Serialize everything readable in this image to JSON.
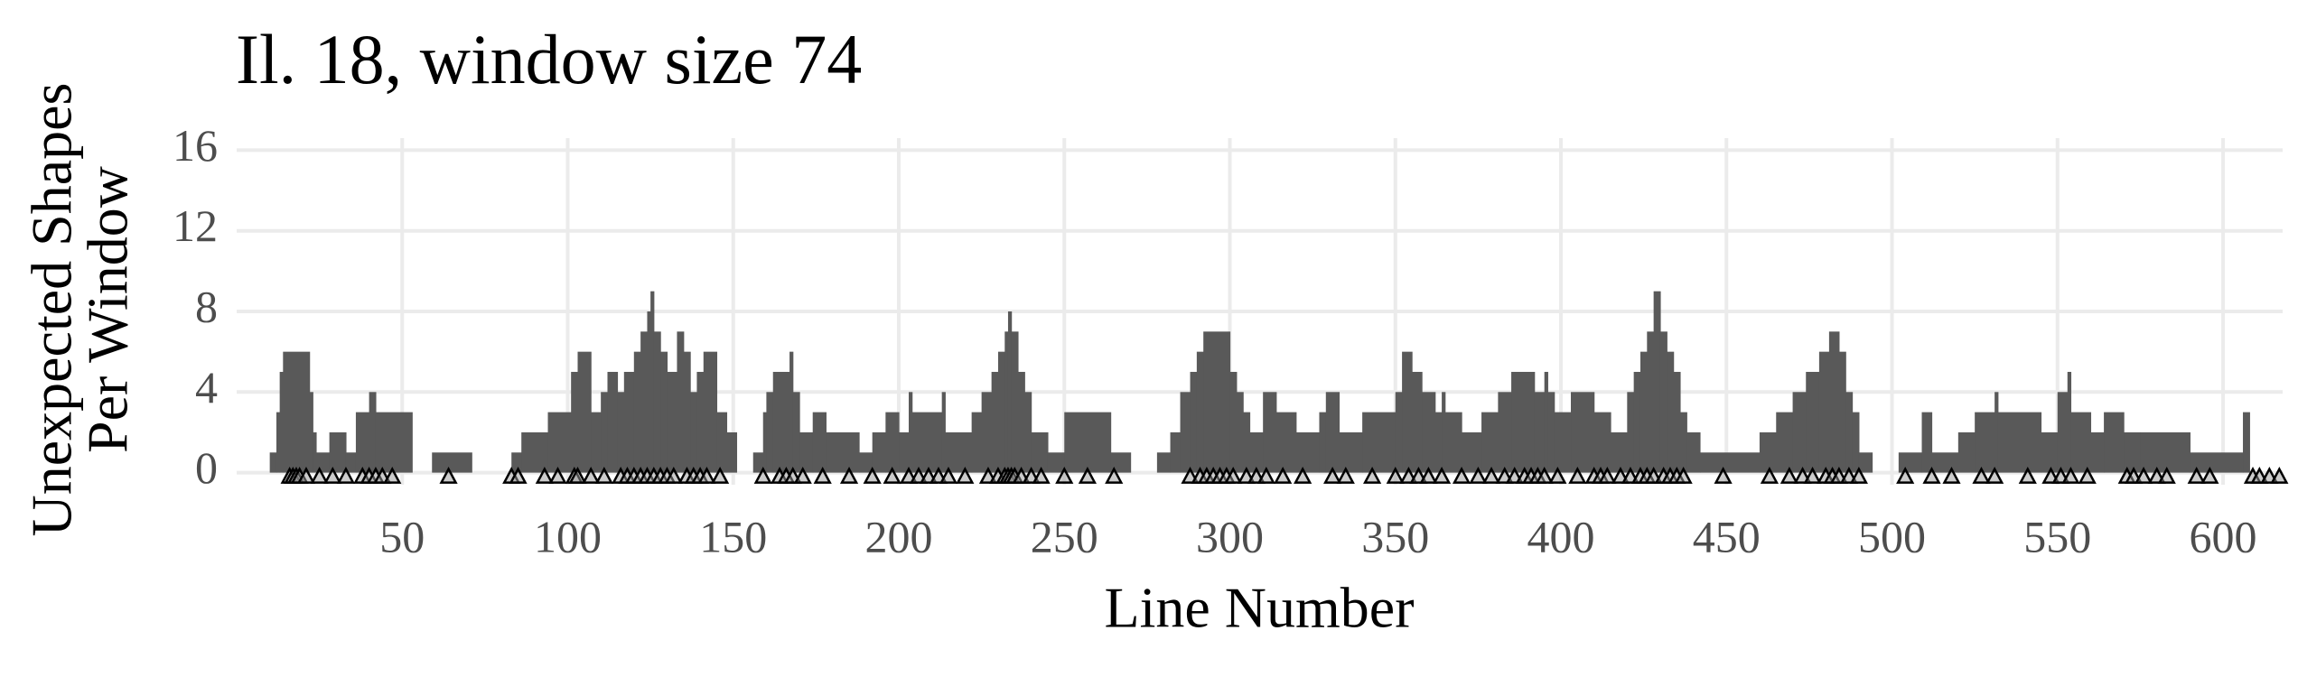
{
  "chart_data": {
    "type": "histogram",
    "title": "Il. 18, window size 74",
    "xlabel": "Line Number",
    "ylabel": [
      "Unexpected Shapes",
      "Per Window"
    ],
    "bins": [
      10,
      12,
      13,
      14,
      22,
      23,
      24,
      28,
      33,
      36,
      40,
      42,
      53,
      59,
      71,
      83,
      86,
      94,
      101,
      103,
      107,
      110,
      112,
      115,
      117,
      120,
      122,
      124,
      125,
      126,
      128,
      130,
      133,
      135,
      137,
      139,
      141,
      145,
      148,
      151,
      156,
      159,
      160,
      162,
      167,
      168,
      170,
      174,
      178,
      188,
      192,
      196,
      200,
      203,
      204,
      213,
      214,
      222,
      225,
      228,
      230,
      232,
      233,
      234,
      236,
      238,
      240,
      245,
      250,
      264,
      270,
      278,
      282,
      285,
      288,
      290,
      292,
      300,
      302,
      304,
      306,
      310,
      314,
      320,
      327,
      329,
      333,
      340,
      350,
      352,
      355,
      358,
      362,
      364,
      365,
      370,
      376,
      381,
      385,
      392,
      395,
      396,
      398,
      403,
      410,
      415,
      420,
      422,
      424,
      426,
      428,
      430,
      432,
      434,
      436,
      438,
      442,
      460,
      465,
      470,
      474,
      478,
      481,
      484,
      486,
      488,
      490,
      494,
      502,
      509,
      512,
      520,
      525,
      531,
      532,
      545,
      550,
      553,
      554,
      560,
      564,
      570,
      575,
      590,
      606,
      608
    ],
    "values": [
      1,
      3,
      5,
      6,
      4,
      2,
      1,
      2,
      1,
      3,
      4,
      3,
      0,
      1,
      0,
      1,
      2,
      3,
      5,
      6,
      3,
      4,
      5,
      4,
      5,
      6,
      7,
      8,
      9,
      7,
      6,
      5,
      7,
      6,
      4,
      5,
      6,
      3,
      2,
      0,
      1,
      3,
      4,
      5,
      6,
      4,
      2,
      3,
      2,
      1,
      2,
      3,
      2,
      4,
      3,
      4,
      2,
      3,
      4,
      5,
      6,
      7,
      8,
      7,
      5,
      4,
      2,
      1,
      3,
      1,
      0,
      1,
      2,
      4,
      5,
      6,
      7,
      5,
      4,
      3,
      2,
      4,
      3,
      2,
      3,
      4,
      2,
      3,
      4,
      6,
      5,
      4,
      3,
      4,
      3,
      2,
      3,
      4,
      5,
      4,
      5,
      4,
      3,
      4,
      3,
      2,
      4,
      5,
      6,
      7,
      9,
      7,
      6,
      5,
      3,
      2,
      1,
      2,
      3,
      4,
      5,
      6,
      7,
      6,
      4,
      3,
      1,
      0,
      1,
      3,
      1,
      2,
      3,
      4,
      3,
      2,
      4,
      5,
      3,
      2,
      3,
      2,
      2,
      1,
      3
    ],
    "color": "#595959",
    "markers": {
      "x": [
        16,
        17,
        18,
        19,
        21,
        25,
        29,
        33,
        38,
        40,
        42,
        44,
        47,
        64,
        83,
        85,
        93,
        97,
        102,
        103,
        107,
        111,
        116,
        118,
        120,
        122,
        124,
        126,
        128,
        130,
        132,
        136,
        138,
        140,
        142,
        146,
        159,
        164,
        166,
        168,
        171,
        177,
        185,
        192,
        198,
        203,
        206,
        209,
        212,
        215,
        220,
        227,
        230,
        232,
        233,
        234,
        235,
        237,
        240,
        243,
        250,
        257,
        265,
        288,
        291,
        293,
        295,
        297,
        299,
        301,
        305,
        308,
        311,
        316,
        322,
        331,
        335,
        343,
        350,
        354,
        357,
        360,
        364,
        370,
        375,
        379,
        383,
        386,
        389,
        391,
        393,
        395,
        399,
        405,
        410,
        412,
        414,
        418,
        421,
        424,
        426,
        428,
        431,
        433,
        435,
        437,
        449,
        463,
        469,
        473,
        476,
        480,
        482,
        484,
        487,
        490,
        504,
        512,
        518,
        527,
        531,
        541,
        548,
        551,
        554,
        559,
        571,
        573,
        576,
        580,
        583,
        592,
        596,
        609,
        611,
        614,
        617
      ],
      "color": "#000000"
    },
    "xlim": [
      0,
      618
    ],
    "ylim": [
      -0.6,
      16.6
    ],
    "xticks": [
      50,
      100,
      150,
      200,
      250,
      300,
      350,
      400,
      450,
      500,
      550,
      600
    ],
    "yticks": [
      0,
      4,
      8,
      12,
      16
    ],
    "grid": true
  }
}
